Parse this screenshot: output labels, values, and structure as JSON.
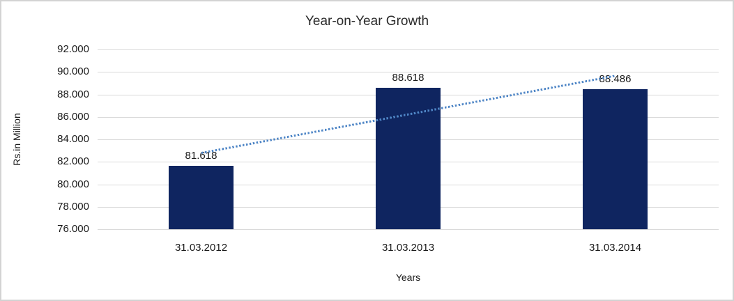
{
  "chart_data": {
    "type": "bar",
    "title": "Year-on-Year Growth",
    "xlabel": "Years",
    "ylabel": "Rs.in Million",
    "categories": [
      "31.03.2012",
      "31.03.2013",
      "31.03.2014"
    ],
    "values": [
      81.618,
      88.618,
      88.486
    ],
    "data_labels": [
      "81.618",
      "88.618",
      "88.486"
    ],
    "y_ticks": [
      "92.000",
      "90.000",
      "88.000",
      "86.000",
      "84.000",
      "82.000",
      "80.000",
      "78.000",
      "76.000"
    ],
    "ylim": [
      76,
      92
    ],
    "grid": true,
    "legend_position": "none",
    "bar_color": "#0F2560",
    "trendline": {
      "style": "dotted",
      "color": "#4F86C6",
      "start_value": 82.807,
      "end_value": 89.675
    },
    "colors": {
      "gridline": "#D9D9D9",
      "border": "#D3D3D3",
      "background": "#FFFFFF",
      "text": "#1A1A1A"
    }
  }
}
